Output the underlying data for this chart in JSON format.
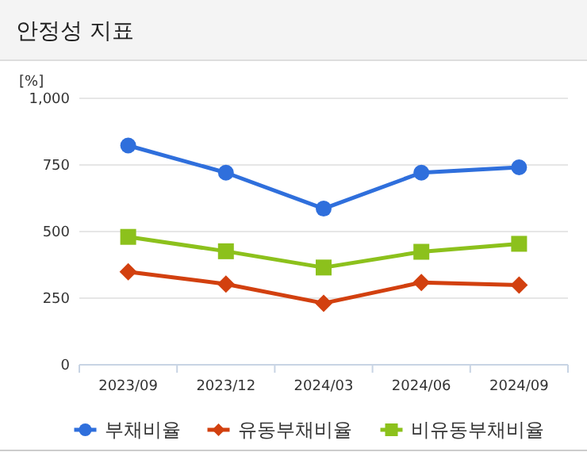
{
  "chart_data": {
    "type": "line",
    "title": "안정성 지표",
    "ylabel": "[%]",
    "categories": [
      "2023/09",
      "2023/12",
      "2024/03",
      "2024/06",
      "2024/09"
    ],
    "series": [
      {
        "name": "부채비율",
        "color": "#2f6fdc",
        "marker": "circle",
        "values": [
          823,
          721,
          586,
          721,
          741
        ]
      },
      {
        "name": "유동부채비율",
        "color": "#d2400f",
        "marker": "diamond",
        "values": [
          349,
          303,
          231,
          309,
          299
        ]
      },
      {
        "name": "비유동부채비율",
        "color": "#8cc11c",
        "marker": "square",
        "values": [
          480,
          426,
          365,
          424,
          454
        ]
      }
    ],
    "ylim": [
      0,
      1000
    ],
    "yticks": [
      0,
      250,
      500,
      750,
      {
        "value": 1000,
        "label": "1,000"
      }
    ],
    "grid": "y",
    "legend": "bottom"
  }
}
